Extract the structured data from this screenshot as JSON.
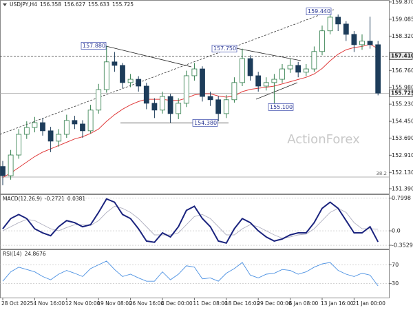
{
  "chart_data": [
    {
      "type": "candlestick",
      "title": "USDJPY,H4",
      "ohlc_readout": [
        156.358,
        156.627,
        155.633,
        155.725
      ],
      "watermark": "ActionForex",
      "categories": [
        "28 Oct 2025",
        null,
        null,
        null,
        "4 Nov 16:00",
        null,
        null,
        null,
        "12 Nov 00:00",
        null,
        null,
        null,
        "19 Nov 08:00",
        null,
        null,
        null,
        "26 Nov 16:00",
        null,
        null,
        null,
        "4 Dec 00:00",
        null,
        null,
        null,
        "11 Dec 08:00",
        null,
        null,
        null,
        "18 Dec 16:00",
        null,
        null,
        null,
        "29 Dec 00:00",
        null,
        null,
        null,
        "6 Jan 08:00",
        null,
        null,
        null,
        "13 Jan 16:00",
        null,
        null,
        null,
        "21 Jan 00:00",
        null,
        null,
        null
      ],
      "open": [
        152.4,
        151.98,
        152.92,
        153.86,
        154.17,
        154.39,
        154.02,
        153.55,
        153.86,
        154.49,
        154.33,
        154.02,
        154.96,
        155.89,
        157.15,
        156.99,
        156.21,
        156.36,
        156.05,
        155.27,
        154.96,
        155.58,
        154.8,
        155.27,
        156.52,
        156.83,
        155.58,
        155.43,
        154.8,
        155.43,
        156.21,
        157.3,
        156.52,
        156.05,
        156.21,
        156.36,
        156.83,
        156.99,
        156.68,
        156.83,
        157.62,
        158.56,
        159.18,
        158.87,
        158.4,
        157.93,
        158.09,
        157.93
      ],
      "high": [
        152.65,
        153.15,
        154.1,
        154.45,
        154.65,
        154.6,
        154.2,
        154.1,
        154.75,
        154.7,
        154.5,
        155.2,
        156.15,
        157.88,
        157.6,
        157.1,
        156.6,
        156.5,
        156.2,
        155.5,
        155.8,
        155.7,
        155.5,
        156.75,
        157.1,
        156.95,
        155.8,
        155.6,
        155.65,
        156.45,
        157.75,
        157.45,
        156.7,
        156.45,
        156.6,
        157.05,
        157.3,
        157.15,
        157.05,
        157.85,
        158.8,
        159.44,
        159.3,
        159.0,
        158.55,
        158.4,
        159.2,
        158.1
      ],
      "low": [
        151.55,
        151.8,
        152.75,
        153.65,
        153.95,
        153.8,
        153.05,
        153.3,
        153.7,
        154.1,
        153.7,
        153.9,
        154.8,
        155.75,
        156.7,
        155.95,
        156.0,
        155.8,
        155.0,
        154.6,
        154.8,
        154.38,
        154.55,
        155.1,
        156.3,
        155.35,
        155.15,
        154.45,
        154.6,
        155.3,
        156.05,
        156.3,
        155.8,
        155.85,
        155.1,
        156.2,
        156.65,
        156.45,
        156.5,
        156.7,
        157.45,
        158.4,
        158.55,
        158.1,
        157.6,
        157.7,
        157.75,
        155.63
      ],
      "close": [
        151.98,
        152.92,
        153.86,
        154.17,
        154.39,
        154.02,
        153.55,
        153.86,
        154.49,
        154.33,
        154.02,
        154.96,
        155.89,
        157.15,
        156.99,
        156.21,
        156.36,
        156.05,
        155.27,
        154.96,
        155.58,
        154.8,
        155.27,
        156.52,
        156.83,
        155.58,
        155.43,
        154.8,
        155.43,
        156.21,
        157.3,
        156.52,
        156.05,
        156.21,
        156.36,
        156.83,
        156.99,
        156.68,
        156.83,
        157.62,
        158.56,
        159.18,
        158.87,
        158.4,
        157.93,
        158.09,
        157.93,
        155.73
      ],
      "up_color": "#2f7d4a",
      "down_color": "#1d3c5a",
      "moving_average": {
        "color": "#e03c3c",
        "values": [
          151.9,
          152.1,
          152.35,
          152.6,
          152.85,
          153.05,
          153.2,
          153.35,
          153.5,
          153.65,
          153.75,
          153.9,
          154.1,
          154.45,
          154.75,
          155.0,
          155.2,
          155.35,
          155.45,
          155.45,
          155.45,
          155.4,
          155.4,
          155.5,
          155.65,
          155.7,
          155.7,
          155.6,
          155.55,
          155.6,
          155.8,
          155.9,
          155.95,
          156.0,
          156.05,
          156.15,
          156.25,
          156.35,
          156.45,
          156.6,
          156.85,
          157.2,
          157.5,
          157.7,
          157.8,
          157.85,
          157.95,
          157.75
        ]
      },
      "ylim": [
        151.2,
        159.96
      ],
      "yticks": [
        {
          "value": 159.87,
          "label": "159.870"
        },
        159.085,
        {
          "value": 158.32,
          "label": "158.320"
        },
        {
          "value": 156.76,
          "label": "156.760"
        },
        {
          "value": 155.98,
          "label": "155.980"
        },
        {
          "value": 155.23,
          "label": "155.230"
        },
        {
          "value": 154.45,
          "label": "154.450"
        },
        {
          "value": 153.69,
          "label": "153.690"
        },
        {
          "value": 152.91,
          "label": "152.910"
        },
        {
          "value": 152.13,
          "label": "152.130"
        },
        {
          "value": 151.39,
          "label": "151.390"
        }
      ],
      "levels": [
        {
          "value": 157.41,
          "label": "157.410"
        },
        155.725
      ],
      "fib_level": {
        "name": "38.2",
        "value": 151.92
      },
      "annotations": [
        {
          "value": 157.88,
          "label": "157.880"
        },
        {
          "value": 157.75,
          "label": "157.750"
        },
        {
          "value": 159.44,
          "label": "159.440"
        },
        {
          "value": 154.38,
          "label": "154.380"
        },
        {
          "value": 155.1,
          "label": "155.100"
        }
      ]
    },
    {
      "type": "line",
      "title": "MACD(12,26,9)",
      "readout": [
        -0.2721,
        0.0381
      ],
      "series": [
        {
          "color": "#1a237e",
          "values": [
            0.05,
            0.3,
            0.4,
            0.3,
            0.05,
            -0.05,
            -0.12,
            0.1,
            0.25,
            0.2,
            0.1,
            0.15,
            0.45,
            0.78,
            0.7,
            0.4,
            0.3,
            0.05,
            -0.25,
            -0.28,
            -0.05,
            -0.15,
            0.1,
            0.5,
            0.6,
            0.3,
            0.1,
            -0.25,
            -0.3,
            0.05,
            0.3,
            0.2,
            0.0,
            -0.15,
            -0.25,
            -0.2,
            -0.1,
            -0.05,
            -0.05,
            0.2,
            0.55,
            0.7,
            0.55,
            0.25,
            -0.05,
            -0.05,
            0.1,
            -0.27
          ]
        },
        {
          "color": "#b0b0c0",
          "values": [
            0.0,
            0.1,
            0.2,
            0.28,
            0.25,
            0.15,
            0.05,
            0.0,
            0.08,
            0.15,
            0.15,
            0.13,
            0.25,
            0.45,
            0.6,
            0.55,
            0.45,
            0.3,
            0.1,
            -0.1,
            -0.1,
            -0.1,
            -0.05,
            0.15,
            0.35,
            0.4,
            0.3,
            0.1,
            -0.1,
            -0.1,
            0.05,
            0.15,
            0.1,
            0.0,
            -0.1,
            -0.18,
            -0.15,
            -0.1,
            -0.08,
            0.05,
            0.25,
            0.45,
            0.55,
            0.45,
            0.2,
            0.05,
            0.05,
            0.04
          ]
        }
      ],
      "ylim": [
        -0.42,
        0.86
      ],
      "yticks": [
        0.7998,
        {
          "value": 0,
          "label": "0.0"
        },
        -0.3529
      ]
    },
    {
      "type": "line",
      "title": "RSI(14)",
      "readout": [
        24.8676
      ],
      "series": [
        {
          "color": "#4a90e2",
          "values": [
            35,
            55,
            65,
            60,
            55,
            45,
            38,
            50,
            58,
            52,
            45,
            62,
            70,
            78,
            60,
            45,
            50,
            42,
            35,
            35,
            55,
            38,
            50,
            68,
            65,
            40,
            42,
            35,
            52,
            62,
            75,
            48,
            42,
            50,
            52,
            60,
            58,
            50,
            55,
            65,
            72,
            75,
            58,
            50,
            45,
            52,
            48,
            25
          ]
        }
      ],
      "ylim": [
        0,
        100
      ],
      "yticks": [
        70,
        30
      ]
    }
  ]
}
